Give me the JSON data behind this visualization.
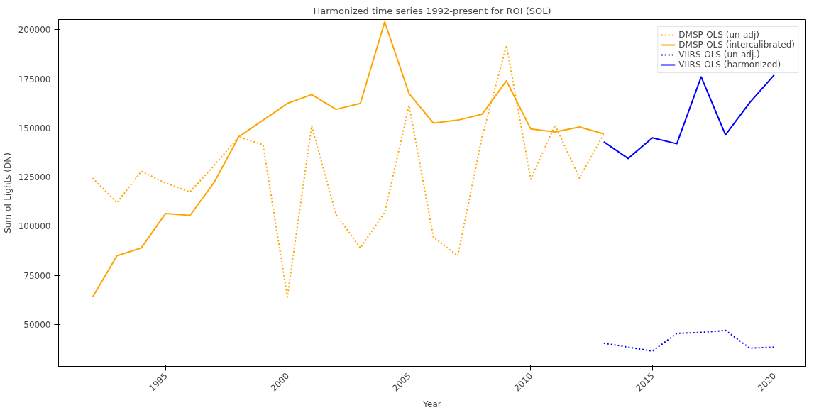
{
  "chart_data": {
    "type": "line",
    "title": "Harmonized time series 1992-present for ROI (SOL)",
    "xlabel": "Year",
    "ylabel": "Sum of Lights (DN)",
    "xlim": [
      1990.6,
      2021.3
    ],
    "xticks": [
      1995,
      2000,
      2005,
      2010,
      2015,
      2020
    ],
    "ylim": [
      28700,
      205200
    ],
    "yticks": [
      50000,
      75000,
      100000,
      125000,
      150000,
      175000,
      200000
    ],
    "grid": false,
    "legend": "top right",
    "marker": "none",
    "series": [
      {
        "name": "DMSP-OLS (un-adj)",
        "color": "#ffa500",
        "line_style": "dotted",
        "x": [
          1992,
          1993,
          1994,
          1995,
          1996,
          1997,
          1998,
          1999,
          2000,
          2001,
          2002,
          2003,
          2004,
          2005,
          2006,
          2007,
          2008,
          2009,
          2010,
          2011,
          2012,
          2013
        ],
        "values": [
          124500,
          112000,
          128000,
          122000,
          117500,
          131000,
          145500,
          141500,
          64000,
          151000,
          106000,
          89000,
          107000,
          161500,
          94500,
          85000,
          145500,
          192000,
          124000,
          151500,
          124500,
          147000
        ]
      },
      {
        "name": "DMSP-OLS (intercalibrated)",
        "color": "#ffa500",
        "line_style": "solid",
        "x": [
          1992,
          1993,
          1994,
          1995,
          1996,
          1997,
          1998,
          1999,
          2000,
          2001,
          2002,
          2003,
          2004,
          2005,
          2006,
          2007,
          2008,
          2009,
          2010,
          2011,
          2012,
          2013
        ],
        "values": [
          64000,
          85000,
          89000,
          106500,
          105500,
          122500,
          145500,
          154000,
          162500,
          167000,
          159500,
          162500,
          204000,
          167500,
          152500,
          154000,
          157000,
          174000,
          149500,
          148000,
          150500,
          147000
        ]
      },
      {
        "name": "VIIRS-OLS (un-adj.)",
        "color": "#0000ff",
        "line_style": "dotted",
        "x": [
          2013,
          2014,
          2015,
          2016,
          2017,
          2018,
          2019,
          2020
        ],
        "values": [
          40500,
          38500,
          36500,
          45500,
          46000,
          47000,
          38000,
          38500
        ]
      },
      {
        "name": "VIIRS-OLS (harmonized)",
        "color": "#0000ff",
        "line_style": "solid",
        "x": [
          2013,
          2014,
          2015,
          2016,
          2017,
          2018,
          2019,
          2020
        ],
        "values": [
          143000,
          134500,
          145000,
          142000,
          176000,
          146500,
          163000,
          177000
        ]
      }
    ]
  }
}
